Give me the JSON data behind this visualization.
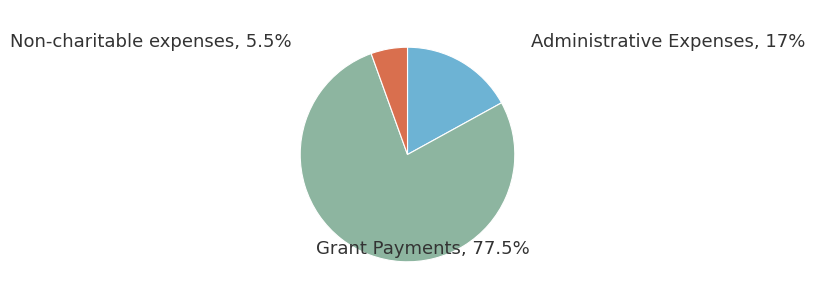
{
  "labels": [
    "Administrative Expenses, 17%",
    "Grant Payments, 77.5%",
    "Non-charitable expenses, 5.5%"
  ],
  "values": [
    17.0,
    77.5,
    5.5
  ],
  "colors": [
    "#6db3d4",
    "#8db5a0",
    "#d96f4e"
  ],
  "startangle": 90,
  "background_color": "#ffffff",
  "label_fontsize": 13,
  "label_color": "#333333",
  "label_positions": {
    "Administrative Expenses, 17%": [
      1.15,
      1.05
    ],
    "Grant Payments, 77.5%": [
      -0.85,
      -0.88
    ],
    "Non-charitable expenses, 5.5%": [
      -1.08,
      1.05
    ]
  }
}
